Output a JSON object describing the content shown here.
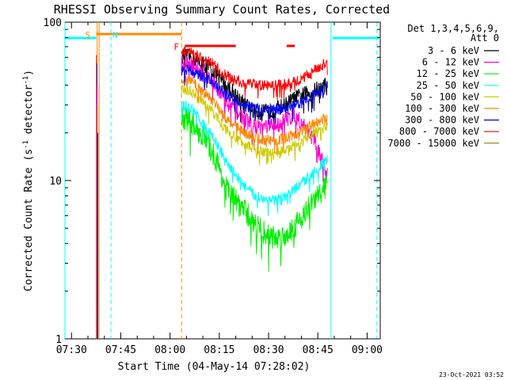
{
  "chart_data": {
    "type": "line",
    "title": "RHESSI Observing Summary Count Rates, Corrected",
    "xlabel": "Start Time (04-May-14 07:28:02)",
    "ylabel": "Corrected Count Rate (s⁻¹ detector⁻¹)",
    "ylabel_parts": [
      "Corrected Count Rate (s",
      "-1",
      " detector",
      "-1",
      ")"
    ],
    "yscale": "log",
    "ylim": [
      1,
      100
    ],
    "xlim_minutes": [
      0,
      96
    ],
    "x_ticks": [
      {
        "minute": 2,
        "label": "07:30"
      },
      {
        "minute": 17,
        "label": "07:45"
      },
      {
        "minute": 32,
        "label": "08:00"
      },
      {
        "minute": 47,
        "label": "08:15"
      },
      {
        "minute": 62,
        "label": "08:30"
      },
      {
        "minute": 77,
        "label": "08:45"
      },
      {
        "minute": 92,
        "label": "09:00"
      }
    ],
    "y_ticks": [
      {
        "value": 1,
        "label": "1"
      },
      {
        "value": 10,
        "label": "10"
      },
      {
        "value": 100,
        "label": "100"
      }
    ],
    "legend_header": [
      "Det 1,3,4,5,6,9,",
      "Att 0"
    ],
    "legend_position": "top-right",
    "series": [
      {
        "name": "3 - 6 keV",
        "color": "#000000",
        "values": [
          [
            35.5,
            62
          ],
          [
            38,
            60
          ],
          [
            42,
            55
          ],
          [
            45,
            50
          ],
          [
            47,
            45
          ],
          [
            49,
            40
          ],
          [
            52,
            35
          ],
          [
            55,
            30
          ],
          [
            58,
            27
          ],
          [
            61,
            27
          ],
          [
            64,
            28
          ],
          [
            67,
            30
          ],
          [
            70,
            33
          ],
          [
            73,
            35
          ],
          [
            76,
            37
          ],
          [
            79,
            40
          ],
          [
            80,
            42
          ]
        ]
      },
      {
        "name": "6 - 12 keV",
        "color": "#ff00cc",
        "values": [
          [
            35.5,
            56
          ],
          [
            38,
            55
          ],
          [
            42,
            48
          ],
          [
            45,
            42
          ],
          [
            47,
            37
          ],
          [
            49,
            32
          ],
          [
            52,
            28
          ],
          [
            55,
            24
          ],
          [
            58,
            22
          ],
          [
            61,
            22
          ],
          [
            64,
            22
          ],
          [
            67,
            24
          ],
          [
            70,
            26
          ],
          [
            73,
            22
          ],
          [
            76,
            18
          ],
          [
            79,
            12
          ],
          [
            80,
            11
          ]
        ]
      },
      {
        "name": "12 - 25 keV",
        "color": "#00ee00",
        "values": [
          [
            35.5,
            25
          ],
          [
            38,
            24
          ],
          [
            42,
            19
          ],
          [
            45,
            15
          ],
          [
            47,
            12
          ],
          [
            49,
            9
          ],
          [
            52,
            7.5
          ],
          [
            55,
            6.3
          ],
          [
            58,
            5.3
          ],
          [
            61,
            4.6
          ],
          [
            64,
            4.3
          ],
          [
            67,
            4.5
          ],
          [
            70,
            5.2
          ],
          [
            73,
            6.2
          ],
          [
            76,
            7.5
          ],
          [
            79,
            9
          ],
          [
            80,
            9.3
          ]
        ]
      },
      {
        "name": "25 - 50 keV",
        "color": "#00ffff",
        "values": [
          [
            35.5,
            30
          ],
          [
            38,
            29
          ],
          [
            42,
            23
          ],
          [
            45,
            19
          ],
          [
            47,
            16
          ],
          [
            49,
            13
          ],
          [
            52,
            11
          ],
          [
            55,
            9
          ],
          [
            58,
            8
          ],
          [
            61,
            7.6
          ],
          [
            64,
            7.5
          ],
          [
            67,
            7.9
          ],
          [
            70,
            8.8
          ],
          [
            73,
            10
          ],
          [
            76,
            11.5
          ],
          [
            79,
            13
          ],
          [
            80,
            13.5
          ]
        ]
      },
      {
        "name": "50 - 100 keV",
        "color": "#cccc00",
        "values": [
          [
            35.5,
            38
          ],
          [
            38,
            37
          ],
          [
            42,
            31
          ],
          [
            45,
            27
          ],
          [
            47,
            24
          ],
          [
            49,
            21
          ],
          [
            52,
            18.5
          ],
          [
            55,
            17
          ],
          [
            58,
            15.5
          ],
          [
            61,
            15
          ],
          [
            64,
            15
          ],
          [
            67,
            15.5
          ],
          [
            70,
            16.5
          ],
          [
            73,
            18
          ],
          [
            76,
            20
          ],
          [
            79,
            21.5
          ],
          [
            80,
            22
          ]
        ]
      },
      {
        "name": "100 - 300 keV",
        "color": "#ff8800",
        "values": [
          [
            35.5,
            44
          ],
          [
            38,
            43
          ],
          [
            42,
            37
          ],
          [
            45,
            32
          ],
          [
            47,
            28
          ],
          [
            49,
            25
          ],
          [
            52,
            22
          ],
          [
            55,
            20
          ],
          [
            58,
            18.5
          ],
          [
            61,
            18
          ],
          [
            64,
            18
          ],
          [
            67,
            18.5
          ],
          [
            70,
            19.5
          ],
          [
            73,
            21
          ],
          [
            76,
            23
          ],
          [
            79,
            24.5
          ],
          [
            80,
            25
          ]
        ]
      },
      {
        "name": "300 - 800 keV",
        "color": "#0000ff",
        "values": [
          [
            35.5,
            50
          ],
          [
            38,
            50
          ],
          [
            42,
            45
          ],
          [
            45,
            42
          ],
          [
            47,
            38
          ],
          [
            49,
            35
          ],
          [
            52,
            32
          ],
          [
            55,
            30
          ],
          [
            58,
            28.5
          ],
          [
            61,
            28
          ],
          [
            64,
            28
          ],
          [
            67,
            28.5
          ],
          [
            70,
            30
          ],
          [
            73,
            32
          ],
          [
            76,
            35
          ],
          [
            79,
            38
          ],
          [
            80,
            40
          ]
        ]
      },
      {
        "name": "800 - 7000 keV",
        "color": "#ff0000",
        "values": [
          [
            35.5,
            66
          ],
          [
            38,
            65
          ],
          [
            42,
            58
          ],
          [
            45,
            55
          ],
          [
            47,
            50
          ],
          [
            49,
            46
          ],
          [
            52,
            43
          ],
          [
            55,
            41
          ],
          [
            58,
            40
          ],
          [
            61,
            40
          ],
          [
            64,
            40
          ],
          [
            67,
            40.5
          ],
          [
            70,
            42
          ],
          [
            73,
            45
          ],
          [
            76,
            50
          ],
          [
            79,
            55
          ],
          [
            80,
            56
          ]
        ]
      },
      {
        "name": "7000 - 15000 keV",
        "color": "#808000",
        "values": []
      }
    ],
    "markers": [
      {
        "label": "S",
        "color": "#ff8800",
        "start": 9.5,
        "end": 35.5
      },
      {
        "label": "N",
        "color": "#00ffff",
        "start": 13.5,
        "end": null
      },
      {
        "label": "F",
        "color": "#ff0000",
        "start": 36.5,
        "end": 42.5
      }
    ],
    "cyan_bands": [
      {
        "start": 0,
        "end": 9.5
      },
      {
        "start": 81.5,
        "end": 96
      }
    ],
    "vlines": [
      {
        "minute": 0,
        "color": "#00ffff",
        "dashed": false
      },
      {
        "minute": 9.8,
        "color": "#ff8800",
        "dashed": false
      },
      {
        "minute": 10.4,
        "color": "#ff8800",
        "dashed": false
      },
      {
        "minute": 14,
        "color": "#00ffff",
        "dashed": true
      },
      {
        "minute": 35.5,
        "color": "#ff8800",
        "dashed": true
      },
      {
        "minute": 81,
        "color": "#00ffff",
        "dashed": false
      },
      {
        "minute": 95,
        "color": "#00ffff",
        "dashed": true
      }
    ],
    "flare_bits": [
      {
        "start": 37,
        "end": 52
      },
      {
        "start": 67.5,
        "end": 70
      }
    ]
  },
  "footer": {
    "timestamp": "23-Oct-2021 03:52"
  }
}
